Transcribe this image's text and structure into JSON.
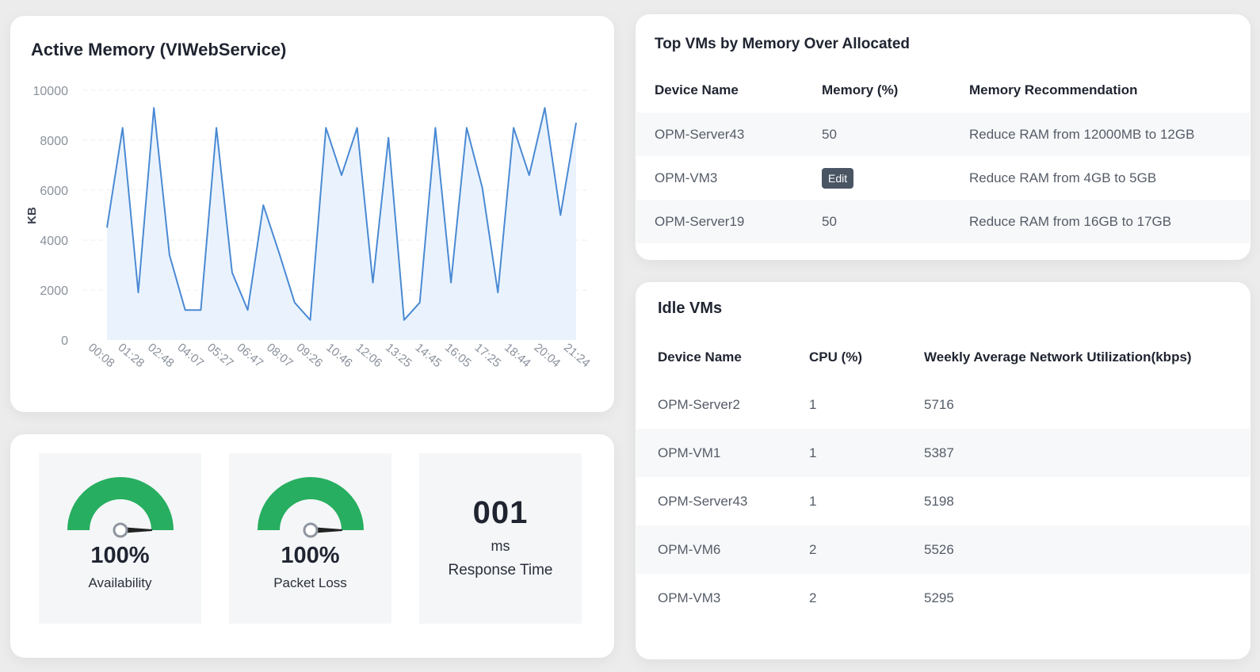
{
  "memory_chart": {
    "title": "Active Memory (VIWebService)"
  },
  "chart_data": {
    "type": "area",
    "title": "Active Memory (VIWebService)",
    "ylabel": "KB",
    "xlabel": "",
    "ylim": [
      0,
      10000
    ],
    "y_ticks": [
      0,
      2000,
      4000,
      6000,
      8000,
      10000
    ],
    "x_tick_labels": [
      "00:08",
      "01:28",
      "02:48",
      "04:07",
      "05:27",
      "06:47",
      "08:07",
      "09:26",
      "10:46",
      "12:06",
      "13:25",
      "14:45",
      "16:05",
      "17:25",
      "18:44",
      "20:04",
      "21:24"
    ],
    "grid": true,
    "color": "#4a8ad4",
    "fill_color": "#eaf3fd",
    "series": [
      {
        "values": [
          4500,
          8500,
          1900,
          9300,
          3400,
          1200,
          1200,
          8500,
          2700,
          1200,
          5400,
          3500,
          1500,
          800,
          8500,
          6600,
          8500,
          2300,
          8100,
          800,
          1500,
          8500,
          2300,
          8500,
          6100,
          1900,
          8500,
          6600,
          9300,
          5000,
          8700
        ]
      }
    ]
  },
  "top_vms": {
    "title": "Top VMs by Memory Over Allocated",
    "headers": [
      "Device Name",
      "Memory (%)",
      "Memory Recommendation"
    ],
    "rows": [
      {
        "device": "OPM-Server43",
        "memory": "50",
        "recommendation": "Reduce RAM from 12000MB to 12GB"
      },
      {
        "device": "OPM-VM3",
        "edit_label": "Edit",
        "recommendation": "Reduce RAM from 4GB to 5GB"
      },
      {
        "device": "OPM-Server19",
        "memory": "50",
        "recommendation": "Reduce RAM from 16GB to 17GB"
      }
    ]
  },
  "idle_vms": {
    "title": "Idle VMs",
    "headers": [
      "Device Name",
      "CPU (%)",
      "Weekly Average Network Utilization(kbps)"
    ],
    "rows": [
      {
        "device": "OPM-Server2",
        "cpu": "1",
        "network": "5716"
      },
      {
        "device": "OPM-VM1",
        "cpu": "1",
        "network": "5387"
      },
      {
        "device": "OPM-Server43",
        "cpu": "1",
        "network": "5198"
      },
      {
        "device": "OPM-VM6",
        "cpu": "2",
        "network": "5526"
      },
      {
        "device": "OPM-VM3",
        "cpu": "2",
        "network": "5295"
      }
    ]
  },
  "stats": {
    "availability": {
      "value": "100%",
      "label": "Availability",
      "fraction": 1.0
    },
    "packet_loss": {
      "value": "100%",
      "label": "Packet Loss",
      "fraction": 1.0
    },
    "response_time": {
      "value": "001",
      "unit": "ms",
      "label": "Response Time"
    },
    "gauge_color": "#27ae60"
  }
}
